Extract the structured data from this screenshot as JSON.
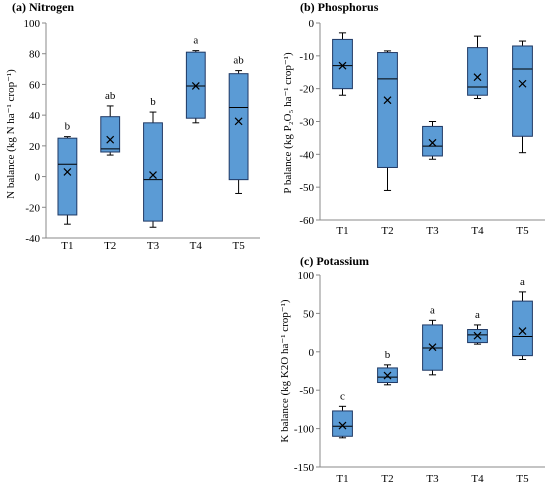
{
  "chart_data": [
    {
      "type": "box",
      "title": "(a)  Nitrogen",
      "ylabel": "N balance (kg N ha⁻¹ crop⁻¹)",
      "ylim": [
        -40,
        100
      ],
      "yticks": [
        -40,
        -20,
        0,
        20,
        40,
        60,
        80,
        100
      ],
      "categories": [
        "T1",
        "T2",
        "T3",
        "T4",
        "T5"
      ],
      "boxes": [
        {
          "whisker_low": -31,
          "q1": -25,
          "median": 8,
          "q3": 25,
          "whisker_high": 26,
          "mean": 3,
          "letter": "b"
        },
        {
          "whisker_low": 14,
          "q1": 16,
          "median": 18,
          "q3": 39,
          "whisker_high": 46,
          "mean": 24,
          "letter": "ab"
        },
        {
          "whisker_low": -33,
          "q1": -29,
          "median": -2,
          "q3": 35,
          "whisker_high": 42,
          "mean": 1,
          "letter": "b"
        },
        {
          "whisker_low": 35,
          "q1": 38,
          "median": 59,
          "q3": 81,
          "whisker_high": 82,
          "mean": 59,
          "letter": "a"
        },
        {
          "whisker_low": -11,
          "q1": -2,
          "median": 45,
          "q3": 67,
          "whisker_high": 69,
          "mean": 36,
          "letter": "ab"
        }
      ]
    },
    {
      "type": "box",
      "title": "(b) Phosphorus",
      "ylabel": "P balance (kg P₂O₅ ha⁻¹ crop⁻¹)",
      "ylim": [
        -60,
        0
      ],
      "yticks": [
        -60,
        -50,
        -40,
        -30,
        -20,
        -10,
        0
      ],
      "categories": [
        "T1",
        "T2",
        "T3",
        "T4",
        "T5"
      ],
      "boxes": [
        {
          "whisker_low": -22,
          "q1": -20,
          "median": -13,
          "q3": -5,
          "whisker_high": -3,
          "mean": -13,
          "letter": ""
        },
        {
          "whisker_low": -51,
          "q1": -44,
          "median": -17,
          "q3": -9,
          "whisker_high": -8.5,
          "mean": -23.5,
          "letter": ""
        },
        {
          "whisker_low": -41.5,
          "q1": -40.5,
          "median": -37.5,
          "q3": -31.5,
          "whisker_high": -30,
          "mean": -36.5,
          "letter": ""
        },
        {
          "whisker_low": -23,
          "q1": -22,
          "median": -19.5,
          "q3": -7.5,
          "whisker_high": -4,
          "mean": -16.5,
          "letter": ""
        },
        {
          "whisker_low": -39.5,
          "q1": -34.5,
          "median": -14,
          "q3": -7,
          "whisker_high": -5.5,
          "mean": -18.5,
          "letter": ""
        }
      ]
    },
    {
      "type": "box",
      "title": "(c) Potassium",
      "ylabel": "K balance (kg K2O  ha⁻¹ crop⁻¹)",
      "ylim": [
        -150,
        100
      ],
      "yticks": [
        -150,
        -100,
        -50,
        0,
        50,
        100
      ],
      "categories": [
        "T1",
        "T2",
        "T3",
        "T4",
        "T5"
      ],
      "boxes": [
        {
          "whisker_low": -112,
          "q1": -110,
          "median": -97,
          "q3": -77,
          "whisker_high": -71,
          "mean": -96,
          "letter": "c"
        },
        {
          "whisker_low": -43,
          "q1": -40,
          "median": -33,
          "q3": -21,
          "whisker_high": -17,
          "mean": -31,
          "letter": "b"
        },
        {
          "whisker_low": -30,
          "q1": -24,
          "median": 5,
          "q3": 35,
          "whisker_high": 41,
          "mean": 6,
          "letter": "a"
        },
        {
          "whisker_low": 10,
          "q1": 12,
          "median": 22,
          "q3": 29,
          "whisker_high": 35,
          "mean": 21,
          "letter": "a"
        },
        {
          "whisker_low": -10,
          "q1": -5,
          "median": 20,
          "q3": 66,
          "whisker_high": 78,
          "mean": 27,
          "letter": "a"
        }
      ]
    }
  ],
  "style": {
    "box_fill": "#5b9bd5",
    "box_stroke": "#1f3864",
    "axis_color": "#888888",
    "text_color": "#000000"
  }
}
